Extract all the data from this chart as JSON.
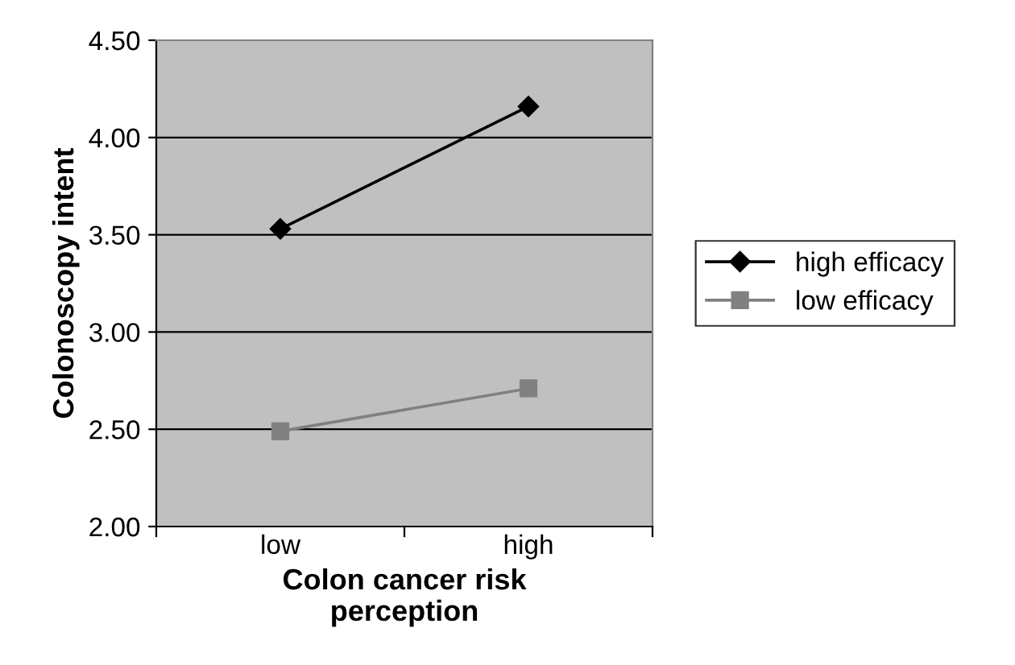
{
  "chart_data": {
    "type": "line",
    "xlabel": "Colon cancer risk\nperception",
    "ylabel": "Colonoscopy intent",
    "categories": [
      "low",
      "high"
    ],
    "series": [
      {
        "name": "high efficacy",
        "color": "#000000",
        "marker": "diamond",
        "values": [
          3.53,
          4.16
        ]
      },
      {
        "name": "low efficacy",
        "color": "#808080",
        "marker": "square",
        "values": [
          2.49,
          2.71
        ]
      }
    ],
    "ylim": [
      2.0,
      4.5
    ],
    "yticks": [
      {
        "value": 2.0,
        "label": "2.00"
      },
      {
        "value": 2.5,
        "label": "2.50"
      },
      {
        "value": 3.0,
        "label": "3.00"
      },
      {
        "value": 3.5,
        "label": "3.50"
      },
      {
        "value": 4.0,
        "label": "4.00"
      },
      {
        "value": 4.5,
        "label": "4.50"
      }
    ],
    "grid": "y",
    "legend": "right",
    "line_style": "solid"
  }
}
